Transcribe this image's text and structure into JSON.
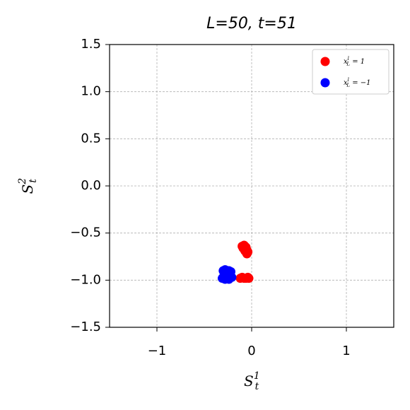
{
  "chart_data": {
    "type": "scatter",
    "title": "L=50, t=51",
    "xlabel": {
      "base": "S",
      "sub": "t",
      "sup": "1"
    },
    "ylabel": {
      "base": "S",
      "sub": "t",
      "sup": "2"
    },
    "xlim": [
      -1.5,
      1.5
    ],
    "ylim": [
      -1.5,
      1.5
    ],
    "xticks": [
      {
        "value": -1,
        "label": "−1"
      },
      0,
      1
    ],
    "yticks": [
      1.5,
      {
        "value": 1,
        "label": "1.0"
      },
      0.5,
      {
        "value": 0,
        "label": "0.0"
      },
      {
        "value": -0.5,
        "label": "−0.5"
      },
      {
        "value": -1,
        "label": "−1.0"
      },
      {
        "value": -1.5,
        "label": "−1.5"
      }
    ],
    "grid": true,
    "legend": "upper right",
    "series": [
      {
        "name": {
          "base": "x",
          "sub": "L",
          "sup": "l",
          "rest": " = 1"
        },
        "color": "#ff0000",
        "x": [
          -0.1,
          -0.08,
          -0.06,
          -0.05,
          -0.04,
          -0.09,
          -0.07,
          -0.05,
          -0.12,
          -0.1,
          -0.08,
          -0.06,
          -0.04,
          -0.03
        ],
        "y": [
          -0.64,
          -0.63,
          -0.65,
          -0.68,
          -0.7,
          -0.66,
          -0.69,
          -0.72,
          -0.98,
          -0.97,
          -0.98,
          -0.98,
          -0.97,
          -0.98
        ]
      },
      {
        "name": {
          "base": "x",
          "sub": "L",
          "sup": "l",
          "rest": " = −1"
        },
        "color": "#0000ff",
        "x": [
          -0.3,
          -0.28,
          -0.26,
          -0.24,
          -0.22,
          -0.29,
          -0.27,
          -0.25,
          -0.23,
          -0.31,
          -0.28,
          -0.26,
          -0.24,
          -0.21
        ],
        "y": [
          -0.9,
          -0.89,
          -0.9,
          -0.9,
          -0.91,
          -0.94,
          -0.93,
          -0.95,
          -0.94,
          -0.98,
          -0.99,
          -0.98,
          -0.99,
          -0.97
        ]
      }
    ]
  }
}
